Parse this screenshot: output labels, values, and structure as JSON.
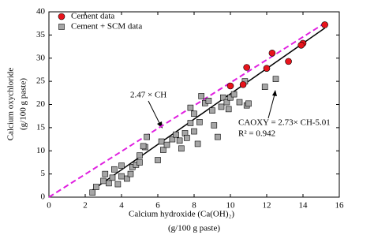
{
  "chart_data": {
    "type": "scatter",
    "xlabel": "Calcium hydroxide (Ca(OH)₂)",
    "xlabel2": "(g/100 g paste)",
    "ylabel": "Calcium oxychloride",
    "ylabel2": "(g/100 g paste)",
    "xlim": [
      0,
      16
    ],
    "xticks": [
      0,
      2,
      4,
      6,
      8,
      10,
      12,
      14,
      16
    ],
    "ylim": [
      0,
      40
    ],
    "yticks": [
      0,
      5,
      10,
      15,
      20,
      25,
      30,
      35,
      40
    ],
    "legend": "top-left",
    "series": [
      {
        "name": "Cement data",
        "color": "#e8141c",
        "marker": "circle",
        "x": [
          15.2,
          14.0,
          13.9,
          13.2,
          12.3,
          12.0,
          10.9,
          10.7,
          10.0
        ],
        "values": [
          37.2,
          33.2,
          32.8,
          29.3,
          31.1,
          27.8,
          28.0,
          24.3,
          24.0
        ]
      },
      {
        "name": "Cement + SCM data",
        "color": "#a6a6a6",
        "marker": "square",
        "x": [
          2.4,
          2.6,
          3.0,
          3.1,
          3.3,
          3.5,
          3.6,
          3.8,
          4.0,
          4.0,
          4.3,
          4.5,
          4.6,
          4.8,
          5.0,
          5.0,
          5.3,
          5.4,
          5.2,
          6.0,
          6.2,
          6.3,
          6.5,
          6.8,
          7.0,
          7.2,
          7.3,
          7.5,
          7.6,
          7.8,
          7.8,
          8.0,
          8.0,
          8.2,
          8.3,
          8.4,
          8.6,
          8.8,
          9.0,
          9.1,
          9.3,
          9.5,
          9.6,
          9.8,
          9.9,
          10.0,
          10.2,
          10.5,
          10.8,
          10.9,
          11.0,
          11.9,
          12.5
        ],
        "values": [
          1.0,
          2.2,
          3.5,
          5.0,
          3.0,
          4.2,
          6.0,
          2.8,
          4.5,
          6.8,
          4.0,
          5.0,
          6.5,
          7.0,
          7.5,
          9.0,
          10.8,
          13.0,
          11.0,
          8.0,
          12.0,
          10.2,
          11.3,
          12.5,
          13.5,
          12.2,
          10.5,
          13.8,
          12.8,
          16.0,
          19.3,
          18.0,
          14.2,
          11.5,
          16.2,
          21.8,
          20.3,
          20.8,
          18.7,
          15.5,
          13.0,
          19.5,
          21.5,
          20.5,
          19.0,
          21.5,
          22.2,
          20.5,
          25.0,
          19.8,
          20.2,
          23.8,
          25.5
        ]
      }
    ],
    "fit_lines": [
      {
        "slope": 2.47,
        "intercept": 0,
        "x": [
          0,
          15.2
        ],
        "color": "#e020e0",
        "dashed": true,
        "label": "2.47 × CH"
      },
      {
        "slope": 2.73,
        "intercept": -5.01,
        "x": [
          2.4,
          15.2
        ],
        "color": "#000000",
        "dashed": false,
        "label": "CAOXY = 2.73× CH-5.01"
      }
    ],
    "r2_label": "R² = 0.942"
  }
}
